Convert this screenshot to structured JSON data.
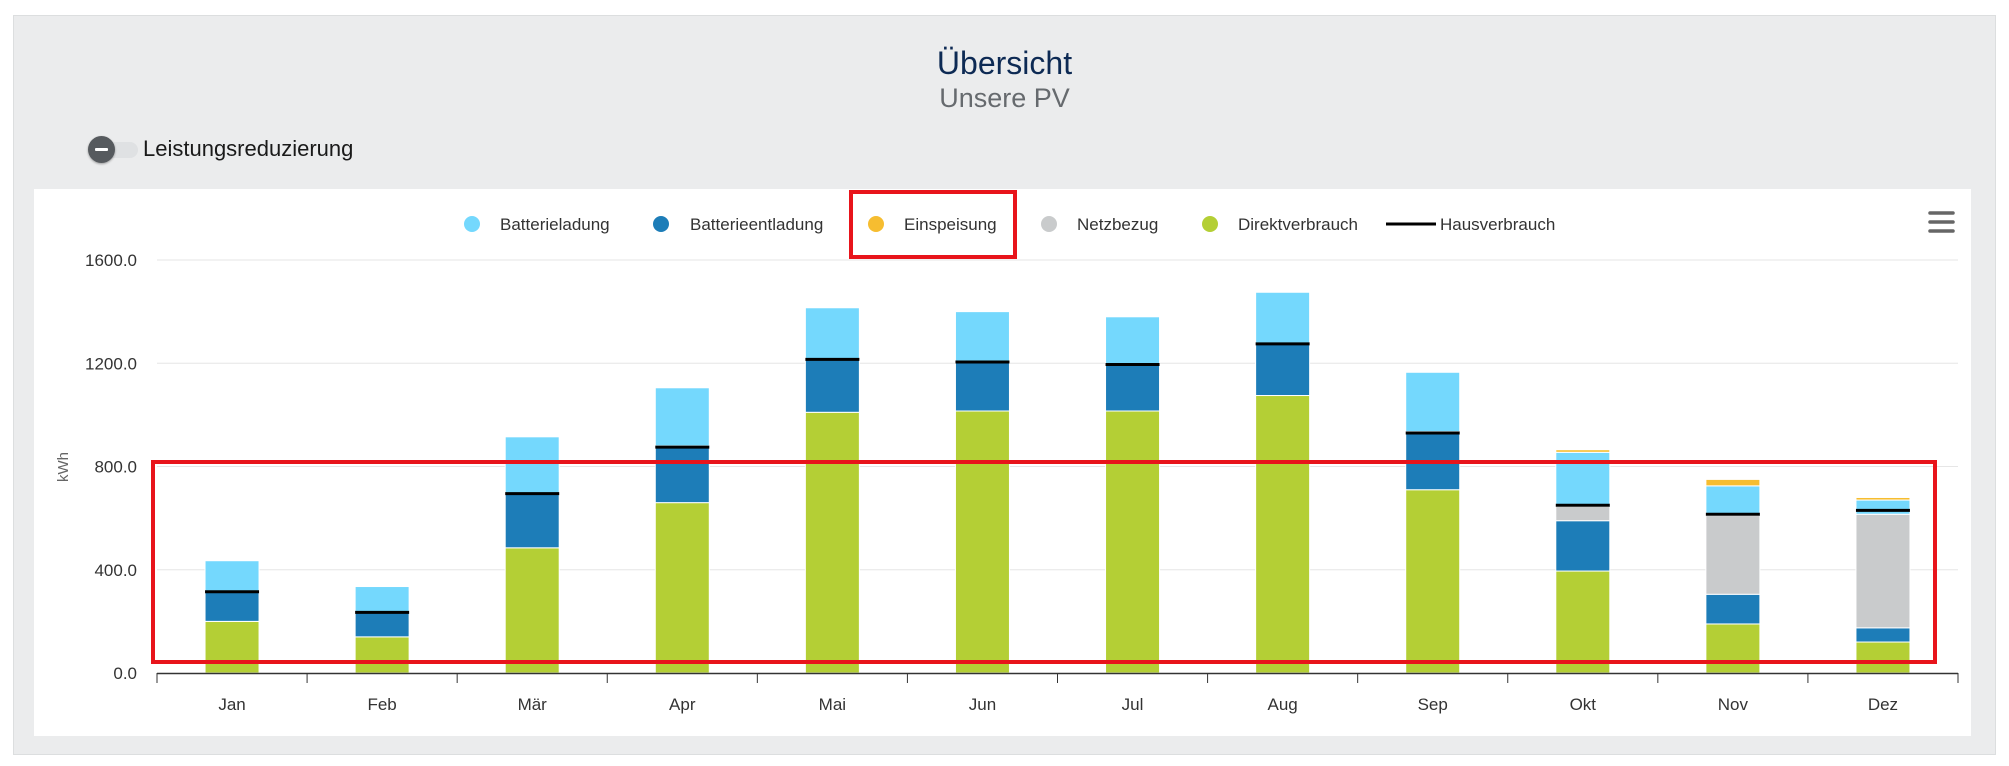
{
  "header": {
    "title": "Übersicht",
    "subtitle": "Unsere PV"
  },
  "toggle": {
    "label": "Leistungsreduzierung",
    "state": "off"
  },
  "menu_icon": "hamburger-menu-icon",
  "colors": {
    "batterieladung": "#74d8fd",
    "batterieentladung": "#1d7db8",
    "einspeisung": "#f6bd30",
    "netzbezug": "#c9cbcc",
    "direktverbrauch": "#b4cf35",
    "hausverbrauch": "#000000",
    "highlight": "#e8141b"
  },
  "chart_data": {
    "type": "bar",
    "stacked": true,
    "ylabel": "kWh",
    "xlabel": "",
    "ylim": [
      0,
      1600
    ],
    "yticks": [
      "0.0",
      "400.0",
      "800.0",
      "1200.0",
      "1600.0"
    ],
    "grid": true,
    "legend_position": "top",
    "categories": [
      "Jan",
      "Feb",
      "Mär",
      "Apr",
      "Mai",
      "Jun",
      "Jul",
      "Aug",
      "Sep",
      "Okt",
      "Nov",
      "Dez"
    ],
    "series": [
      {
        "name": "Batterieladung",
        "key": "batterieladung",
        "values": [
          120,
          100,
          220,
          225,
          200,
          195,
          185,
          200,
          230,
          210,
          115,
          55
        ]
      },
      {
        "name": "Batterieentladung",
        "key": "batterieentladung",
        "values": [
          115,
          95,
          210,
          220,
          205,
          190,
          180,
          200,
          225,
          195,
          115,
          55
        ]
      },
      {
        "name": "Einspeisung",
        "key": "einspeisung",
        "values": [
          0,
          0,
          0,
          0,
          0,
          0,
          0,
          0,
          0,
          10,
          25,
          10
        ]
      },
      {
        "name": "Netzbezug",
        "key": "netzbezug",
        "values": [
          0,
          0,
          0,
          0,
          0,
          0,
          0,
          0,
          0,
          55,
          305,
          440
        ]
      },
      {
        "name": "Direktverbrauch",
        "key": "direktverbrauch",
        "values": [
          200,
          140,
          485,
          660,
          1010,
          1015,
          1015,
          1075,
          710,
          395,
          190,
          120
        ]
      }
    ],
    "stack_order": [
      "direktverbrauch",
      "batterieentladung",
      "netzbezug",
      "batterieladung",
      "einspeisung"
    ],
    "line_series": {
      "name": "Hausverbrauch",
      "key": "hausverbrauch",
      "values": [
        315,
        235,
        695,
        875,
        1215,
        1205,
        1195,
        1275,
        930,
        650,
        615,
        630
      ]
    }
  }
}
